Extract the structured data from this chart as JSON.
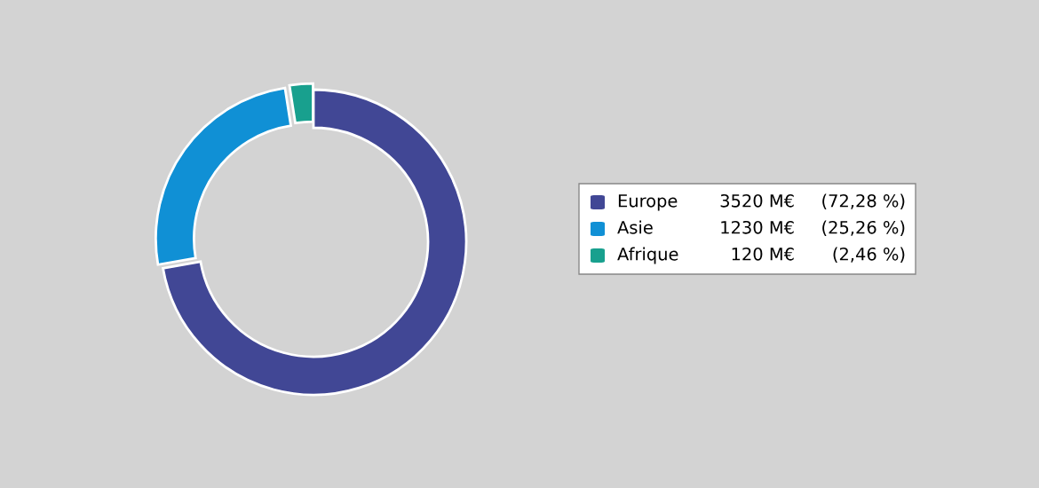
{
  "chart_data": {
    "type": "donut",
    "categories": [
      "Europe",
      "Asie",
      "Afrique"
    ],
    "values": [
      3520,
      1230,
      120
    ],
    "colors": [
      "#414795",
      "#1090d5",
      "#18a08e"
    ],
    "value_labels": [
      "3520 M€",
      "1230 M€",
      "120 M€"
    ],
    "annotations": [
      "(72,28 %)",
      "(25,26 %)",
      "(2,46 %)"
    ],
    "legend": "right"
  }
}
